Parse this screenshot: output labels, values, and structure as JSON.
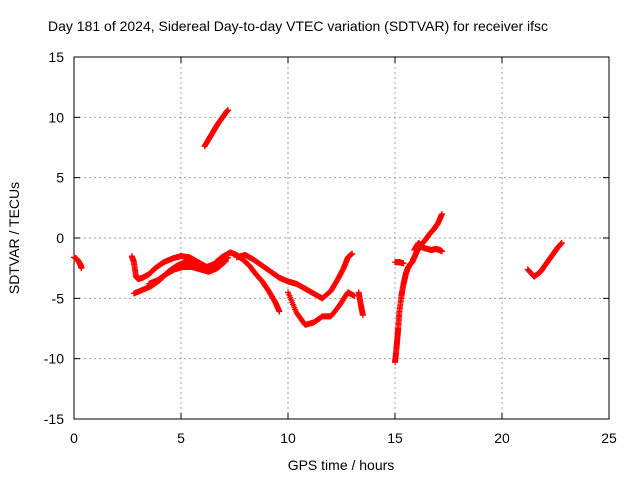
{
  "chart_data": {
    "type": "scatter",
    "title": "Day 181 of 2024, Sidereal Day-to-day VTEC variation (SDTVAR) for receiver ifsc",
    "xlabel": "GPS time / hours",
    "ylabel": "SDTVAR / TECUs",
    "xlim": [
      0,
      25
    ],
    "ylim": [
      -15,
      15
    ],
    "xticks": [
      0,
      5,
      10,
      15,
      20,
      25
    ],
    "yticks": [
      -15,
      -10,
      -5,
      0,
      5,
      10,
      15
    ],
    "grid": true,
    "marker": "+",
    "color": "#ff0000",
    "series": [
      {
        "name": "SDTVAR",
        "segments": [
          {
            "x": [
              0.0,
              0.1,
              0.2,
              0.3,
              0.35
            ],
            "y": [
              -1.6,
              -1.7,
              -1.9,
              -2.2,
              -2.5
            ]
          },
          {
            "x": [
              2.7,
              2.8,
              2.9,
              3.0,
              3.2,
              3.5,
              3.8,
              4.2,
              4.6,
              5.0,
              5.4,
              5.8,
              6.2,
              6.5,
              6.9,
              7.3
            ],
            "y": [
              -1.5,
              -2.0,
              -3.2,
              -3.4,
              -3.3,
              -3.0,
              -2.5,
              -2.0,
              -1.7,
              -1.5,
              -1.6,
              -2.0,
              -2.4,
              -2.2,
              -1.6,
              -1.2
            ]
          },
          {
            "x": [
              2.8,
              3.2,
              3.6,
              4.0,
              4.4,
              4.8,
              5.2,
              5.6,
              6.0,
              6.4,
              6.8,
              7.2
            ],
            "y": [
              -4.6,
              -4.3,
              -4.0,
              -3.5,
              -2.8,
              -2.3,
              -2.0,
              -2.0,
              -2.4,
              -2.6,
              -2.2,
              -1.6
            ]
          },
          {
            "x": [
              3.5,
              3.9,
              4.3,
              4.7,
              5.1,
              5.5,
              5.9,
              6.3,
              6.7,
              7.1
            ],
            "y": [
              -3.8,
              -3.5,
              -3.0,
              -2.6,
              -2.4,
              -2.4,
              -2.6,
              -2.8,
              -2.5,
              -1.9
            ]
          },
          {
            "x": [
              6.1,
              6.3,
              6.5,
              6.7,
              6.9,
              7.1,
              7.2
            ],
            "y": [
              7.6,
              8.2,
              8.8,
              9.4,
              9.9,
              10.4,
              10.6
            ]
          },
          {
            "x": [
              7.3,
              7.6,
              7.9,
              8.2,
              8.5,
              8.8,
              9.1,
              9.4,
              9.6
            ],
            "y": [
              -1.2,
              -1.4,
              -1.8,
              -2.3,
              -3.0,
              -3.6,
              -4.4,
              -5.3,
              -6.1
            ]
          },
          {
            "x": [
              7.6,
              8.0,
              8.4,
              8.8,
              9.2,
              9.6,
              10.0,
              10.4,
              10.8,
              11.2,
              11.6,
              12.0,
              12.3,
              12.6,
              12.8,
              13.0
            ],
            "y": [
              -1.6,
              -1.4,
              -1.8,
              -2.3,
              -2.8,
              -3.3,
              -3.6,
              -3.8,
              -4.2,
              -4.6,
              -5.0,
              -4.4,
              -3.5,
              -2.5,
              -1.6,
              -1.3
            ]
          },
          {
            "x": [
              10.0,
              10.4,
              10.8,
              11.2,
              11.6,
              12.0,
              12.4,
              12.8,
              13.1
            ],
            "y": [
              -4.5,
              -6.2,
              -7.2,
              -7.0,
              -6.5,
              -6.5,
              -5.6,
              -4.5,
              -4.8
            ]
          },
          {
            "x": [
              13.3,
              13.4,
              13.5
            ],
            "y": [
              -4.5,
              -5.5,
              -6.4
            ]
          },
          {
            "x": [
              15.0,
              15.05,
              15.1,
              15.15,
              15.2,
              15.3,
              15.4,
              15.5,
              15.6,
              15.7,
              15.8,
              15.9,
              16.0,
              16.2,
              16.4,
              16.6,
              16.8,
              17.0,
              17.2
            ],
            "y": [
              -10.3,
              -9.5,
              -8.5,
              -7.5,
              -6.2,
              -4.8,
              -3.8,
              -3.0,
              -2.5,
              -2.2,
              -2.0,
              -1.6,
              -1.2,
              -0.6,
              -0.2,
              0.3,
              0.7,
              1.2,
              2.0
            ]
          },
          {
            "x": [
              15.0,
              15.2,
              15.4
            ],
            "y": [
              -2.0,
              -2.0,
              -2.1
            ]
          },
          {
            "x": [
              15.9,
              16.1,
              16.3,
              16.5,
              16.7,
              16.9,
              17.1,
              17.2
            ],
            "y": [
              -1.0,
              -0.4,
              -0.8,
              -0.9,
              -1.0,
              -0.9,
              -1.0,
              -1.1
            ]
          },
          {
            "x": [
              21.2,
              21.5,
              21.8,
              22.0,
              22.2,
              22.4,
              22.6,
              22.8
            ],
            "y": [
              -2.6,
              -3.2,
              -2.8,
              -2.3,
              -1.8,
              -1.3,
              -0.8,
              -0.4
            ]
          }
        ]
      }
    ]
  }
}
